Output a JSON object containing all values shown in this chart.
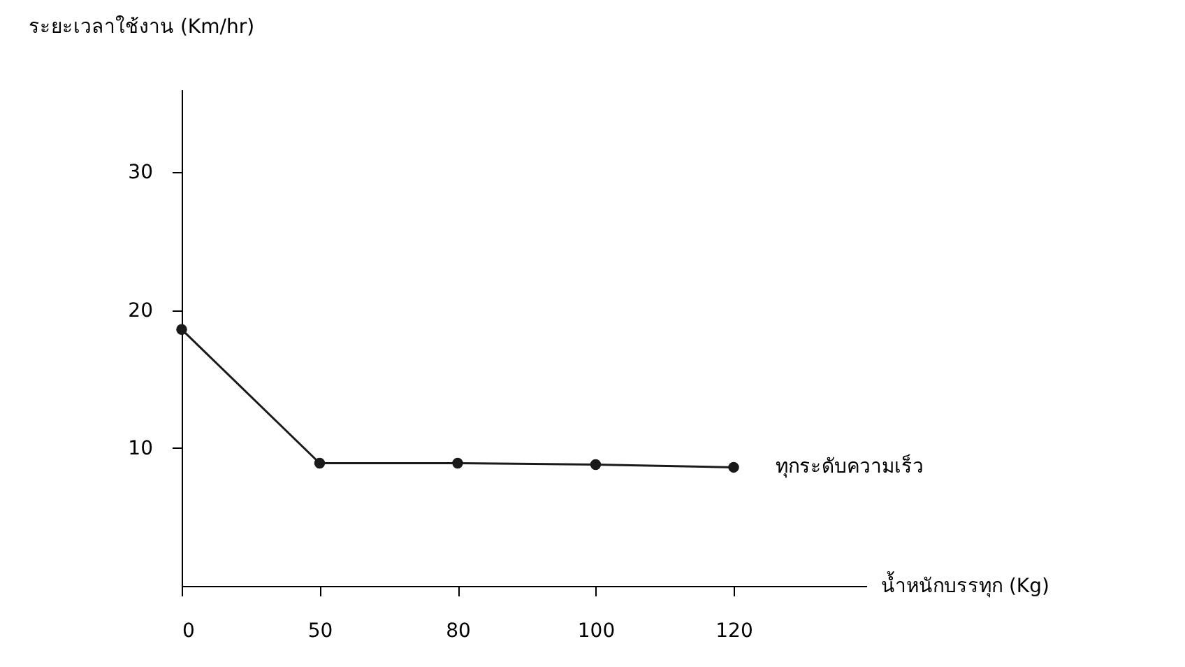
{
  "chart_data": {
    "type": "line",
    "xlabel": "น้ำหนักบรรทุก (Kg)",
    "ylabel": "ระยะเวลาใช้งาน (Km/hr)",
    "categories": [
      "0",
      "50",
      "80",
      "100",
      "120"
    ],
    "series": [
      {
        "name": "ทุกระดับความเร็ว",
        "color": "#1a1a1a",
        "values": [
          18.6,
          8.9,
          8.9,
          8.8,
          8.6
        ]
      }
    ],
    "ylim": [
      0,
      36
    ],
    "yticks": [
      10,
      20,
      30
    ],
    "grid": false,
    "legend": false,
    "marker": "circle",
    "line_style": "solid"
  }
}
